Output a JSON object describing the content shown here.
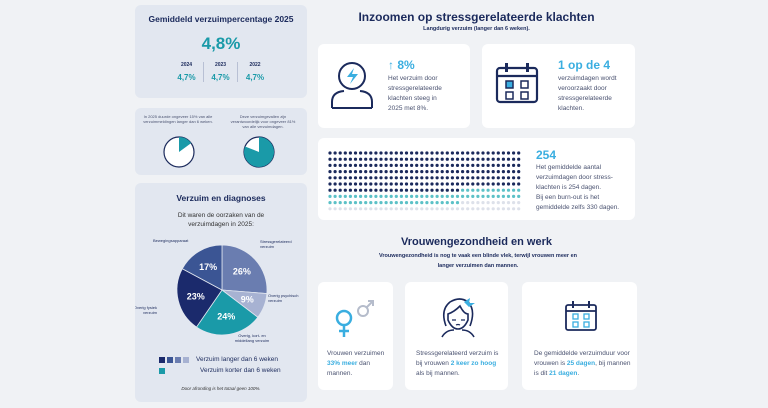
{
  "avg": {
    "title": "Gemiddeld verzuimpercentage 2025",
    "value": "4,8%",
    "years": [
      {
        "year": "2024",
        "value": "4,7%"
      },
      {
        "year": "2023",
        "value": "4,7%"
      },
      {
        "year": "2022",
        "value": "4,7%"
      }
    ]
  },
  "share": {
    "left_text": "In 2025 duurde ongeveer 15% van alle verzuimmeldingen langer dan 6 weken.",
    "left_fraction": 0.15,
    "right_text": "Deze verzuimgevallen zijn verantwoordelijk voor ongeveer 81% van alle verzuimdagen.",
    "right_fraction": 0.81
  },
  "diag": {
    "title": "Verzuim en diagnoses",
    "subtitle": "Dit waren de oorzaken van de verzuimdagen in 2025:",
    "legend_long": "Verzuim langer dan 6 weken",
    "legend_short": "Verzuim korter dan 6 weken",
    "note": "Door afronding is het totaal geen 100%."
  },
  "chart_data": {
    "type": "pie",
    "slices": [
      {
        "label": "Stressgerelateerd verzuim",
        "value": 26,
        "display": "26%",
        "color": "#6a7db0"
      },
      {
        "label": "Overig psychisch verzuim",
        "value": 9,
        "display": "9%",
        "color": "#a7b2d2"
      },
      {
        "label": "Overig, kort- en middellang verzuim",
        "value": 24,
        "display": "24%",
        "color": "#1a9aa8"
      },
      {
        "label": "Overig fysiek verzuim",
        "value": 23,
        "display": "23%",
        "color": "#1b2a6c"
      },
      {
        "label": "Bewegingsapparaat",
        "value": 17,
        "display": "17%",
        "color": "#3b5594"
      }
    ]
  },
  "stress": {
    "title": "Inzoomen op stressgerelateerde klachten",
    "subtitle": "Langdurig verzuim (langer dan 6 weken).",
    "card1": {
      "value": "8%",
      "text": "Het verzuim door stressgerelateerde klachten steeg in 2025 met 8%."
    },
    "card2": {
      "value": "1 op de 4",
      "text": "verzuimdagen wordt veroorzaakt door stressgerelateerde klachten."
    },
    "card3": {
      "value": "254",
      "text1": "Het gemiddelde aantal verzuimdagen door stress-klachten is 254 dagen.",
      "text2": "Bij een burn-out is het gemiddelde zelfs 330 dagen.",
      "stress_days": 254,
      "burnout_days": 330
    }
  },
  "women": {
    "title": "Vrouwengezondheid en werk",
    "subtitle": "Vrouwengezondheid is nog te vaak een blinde vlek, terwijl vrouwen meer en langer verzuimen dan mannen.",
    "c1": {
      "a": "Vrouwen verzuimen ",
      "b": "33% meer",
      "c": " dan mannen."
    },
    "c2": {
      "a": "Stressgerelateerd verzuim is bij vrouwen ",
      "b": "2 keer zo hoog",
      "c": " als bij mannen."
    },
    "c3": {
      "a": "De gemiddelde verzuimduur voor vrouwen is ",
      "b": "25 dagen",
      "c": ", bij mannen is dit ",
      "d": "21 dagen",
      "e": "."
    }
  },
  "colors": {
    "navy": "#1b2a5c",
    "teal": "#1a9aa8",
    "cyan": "#3aaee0"
  }
}
